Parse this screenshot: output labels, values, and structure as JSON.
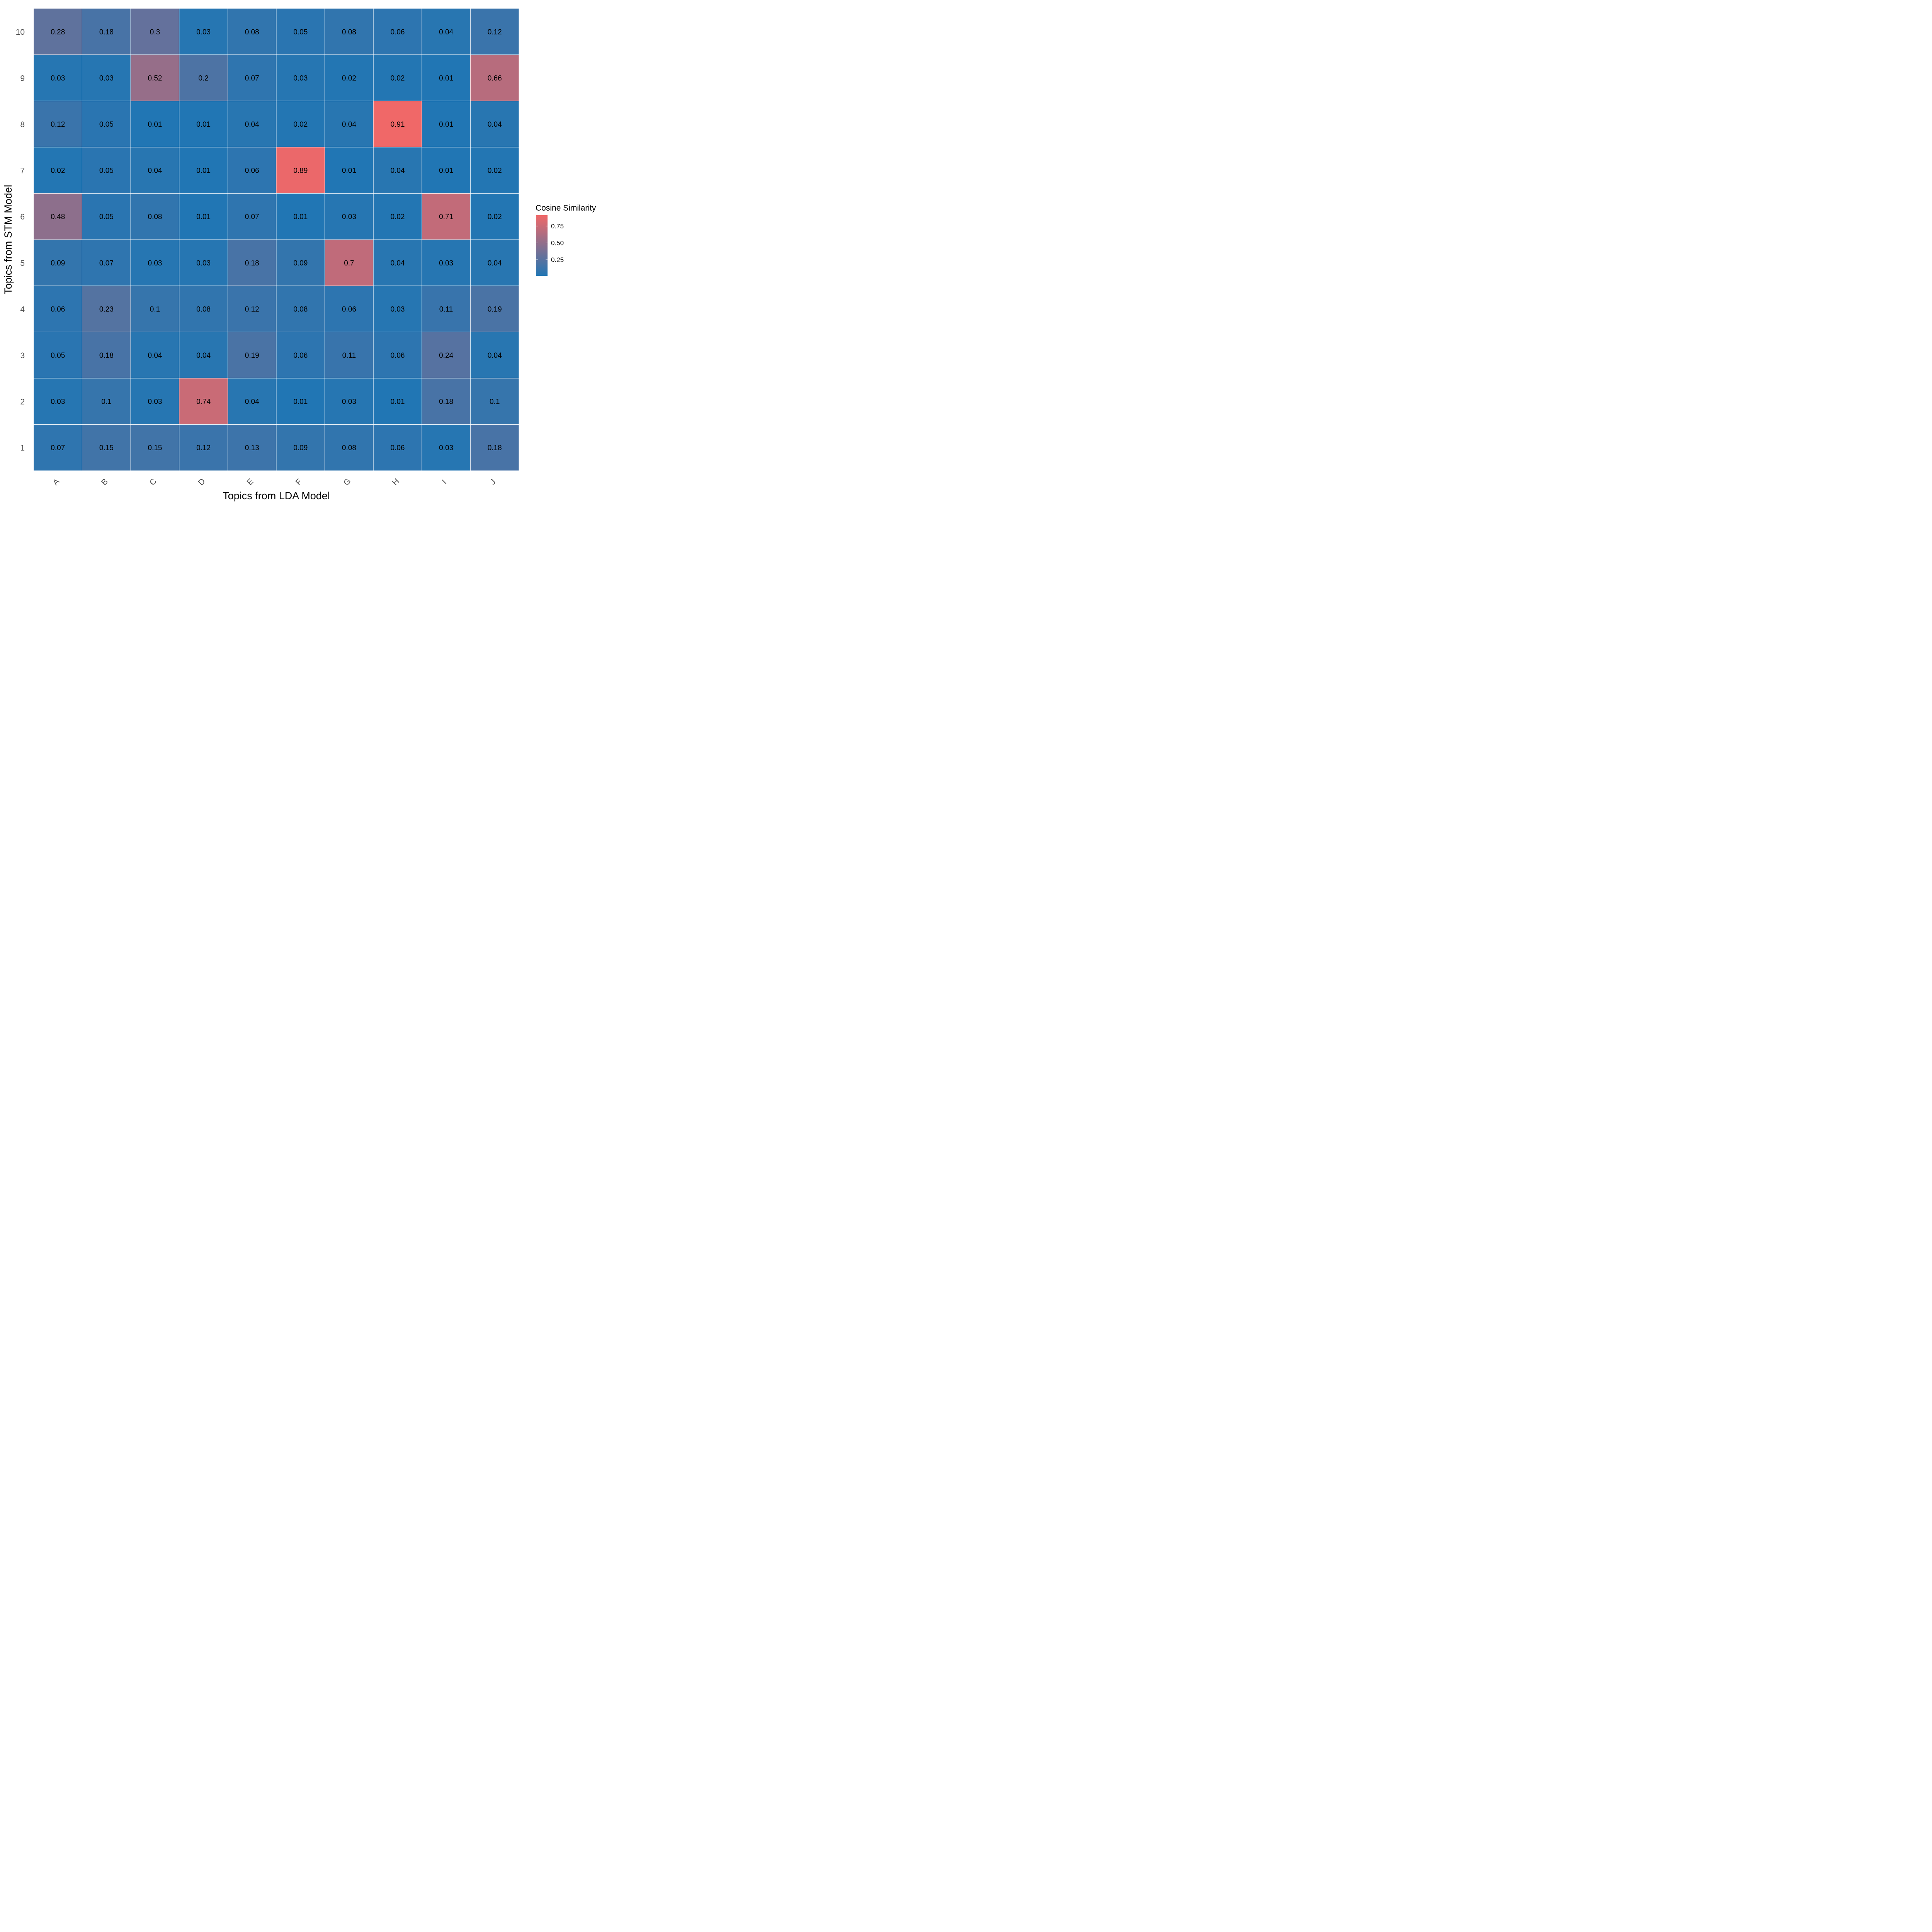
{
  "chart_data": {
    "type": "heatmap",
    "title": "",
    "xlabel": "Topics from LDA Model",
    "ylabel": "Topics from STM Model",
    "x_categories": [
      "A",
      "B",
      "C",
      "D",
      "E",
      "F",
      "G",
      "H",
      "I",
      "J"
    ],
    "y_categories": [
      "1",
      "2",
      "3",
      "4",
      "5",
      "6",
      "7",
      "8",
      "9",
      "10"
    ],
    "values": [
      [
        0.07,
        0.15,
        0.15,
        0.12,
        0.13,
        0.09,
        0.08,
        0.06,
        0.03,
        0.18
      ],
      [
        0.03,
        0.1,
        0.03,
        0.74,
        0.04,
        0.01,
        0.03,
        0.01,
        0.18,
        0.1
      ],
      [
        0.05,
        0.18,
        0.04,
        0.04,
        0.19,
        0.06,
        0.11,
        0.06,
        0.24,
        0.04
      ],
      [
        0.06,
        0.23,
        0.1,
        0.08,
        0.12,
        0.08,
        0.06,
        0.03,
        0.11,
        0.19
      ],
      [
        0.09,
        0.07,
        0.03,
        0.03,
        0.18,
        0.09,
        0.7,
        0.04,
        0.03,
        0.04
      ],
      [
        0.48,
        0.05,
        0.08,
        0.01,
        0.07,
        0.01,
        0.03,
        0.02,
        0.71,
        0.02
      ],
      [
        0.02,
        0.05,
        0.04,
        0.01,
        0.06,
        0.89,
        0.01,
        0.04,
        0.01,
        0.02
      ],
      [
        0.12,
        0.05,
        0.01,
        0.01,
        0.04,
        0.02,
        0.04,
        0.91,
        0.01,
        0.04
      ],
      [
        0.03,
        0.03,
        0.52,
        0.2,
        0.07,
        0.03,
        0.02,
        0.02,
        0.01,
        0.66
      ],
      [
        0.28,
        0.18,
        0.3,
        0.03,
        0.08,
        0.05,
        0.08,
        0.06,
        0.04,
        0.12
      ]
    ],
    "legend": {
      "title": "Cosine Similarity",
      "ticks": [
        0.25,
        0.5,
        0.75
      ],
      "tick_labels": [
        "0.25",
        "0.50",
        "0.75"
      ],
      "range": [
        0.01,
        0.91
      ],
      "low_color": "#2176b4",
      "high_color": "#f06868",
      "placement": "right"
    },
    "grid": false
  }
}
